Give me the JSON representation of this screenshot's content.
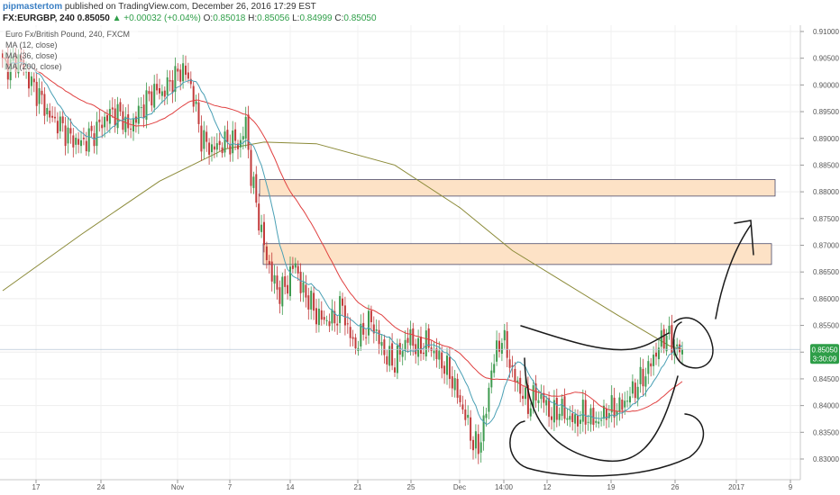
{
  "header": {
    "author": "pipmastertom",
    "published": "published on TradingView.com, December 26, 2016 17:29 EST",
    "symbol": "FX:EURGBP, 240",
    "last": "0.85050",
    "change_arrow": "▲",
    "change": "+0.00032 (+0.04%)",
    "o_label": "O:",
    "o_value": "0.85018",
    "h_label": "H:",
    "h_value": "0.85056",
    "l_label": "L:",
    "l_value": "0.84999",
    "c_label": "C:",
    "c_value": "0.85050"
  },
  "legend": {
    "title": "Euro Fx/British Pound, 240, FXCM",
    "ma1": "MA (12, close)",
    "ma2": "MA (36, close)",
    "ma3": "MA (200, close)"
  },
  "price_labels": {
    "current": "0.85050",
    "countdown": "3:30:09"
  },
  "colors": {
    "up": "#3e9b4f",
    "down": "#c23b3b",
    "ma12": "#4aa0b5",
    "ma36": "#e04040",
    "ma200": "#8b8a38",
    "zone_fill": "#fde2c6",
    "zone_stroke": "#4a4a6a",
    "price_tag": "#2e9e48"
  },
  "chart_data": {
    "type": "candlestick",
    "ylim": [
      0.826,
      0.912
    ],
    "y_ticks": [
      "0.91000",
      "0.90500",
      "0.90000",
      "0.89500",
      "0.89000",
      "0.88500",
      "0.88000",
      "0.87500",
      "0.87000",
      "0.86500",
      "0.86000",
      "0.85500",
      "0.85000",
      "0.84500",
      "0.84000",
      "0.83500",
      "0.83000"
    ],
    "x_ticks": [
      "17",
      "24",
      "Nov",
      "7",
      "14",
      "21",
      "25",
      "Dec",
      "14:00",
      "12",
      "19",
      "26",
      "2017",
      "9"
    ],
    "zones": [
      {
        "low": 0.8792,
        "high": 0.8823
      },
      {
        "low": 0.8664,
        "high": 0.8703
      }
    ],
    "close_points": [
      [
        0,
        0.904
      ],
      [
        3,
        0.9035
      ],
      [
        6,
        0.905
      ],
      [
        10,
        0.901
      ],
      [
        14,
        0.898
      ],
      [
        18,
        0.894
      ],
      [
        22,
        0.8925
      ],
      [
        26,
        0.89
      ],
      [
        30,
        0.889
      ],
      [
        34,
        0.8905
      ],
      [
        38,
        0.893
      ],
      [
        42,
        0.895
      ],
      [
        46,
        0.894
      ],
      [
        48,
        0.8915
      ],
      [
        51,
        0.894
      ],
      [
        55,
        0.897
      ],
      [
        58,
        0.899
      ],
      [
        61,
        0.8985
      ],
      [
        65,
        0.901
      ],
      [
        69,
        0.903
      ],
      [
        72,
        0.9
      ],
      [
        74,
        0.895
      ],
      [
        76,
        0.89
      ],
      [
        80,
        0.888
      ],
      [
        84,
        0.889
      ],
      [
        88,
        0.8895
      ],
      [
        91,
        0.889
      ],
      [
        93,
        0.893
      ],
      [
        95,
        0.883
      ],
      [
        97,
        0.878
      ],
      [
        99,
        0.872
      ],
      [
        101,
        0.868
      ],
      [
        103,
        0.864
      ],
      [
        106,
        0.861
      ],
      [
        109,
        0.863
      ],
      [
        112,
        0.867
      ],
      [
        114,
        0.862
      ],
      [
        117,
        0.86
      ],
      [
        120,
        0.857
      ],
      [
        123,
        0.856
      ],
      [
        127,
        0.856
      ],
      [
        130,
        0.859
      ],
      [
        132,
        0.854
      ],
      [
        135,
        0.851
      ],
      [
        138,
        0.854
      ],
      [
        141,
        0.856
      ],
      [
        144,
        0.852
      ],
      [
        147,
        0.849
      ],
      [
        150,
        0.848
      ],
      [
        153,
        0.851
      ],
      [
        156,
        0.853
      ],
      [
        159,
        0.85
      ],
      [
        162,
        0.852
      ],
      [
        165,
        0.85
      ],
      [
        168,
        0.848
      ],
      [
        171,
        0.846
      ],
      [
        174,
        0.842
      ],
      [
        177,
        0.838
      ],
      [
        180,
        0.833
      ],
      [
        182,
        0.832
      ],
      [
        185,
        0.839
      ],
      [
        187,
        0.847
      ],
      [
        189,
        0.85
      ],
      [
        191,
        0.853
      ],
      [
        193,
        0.85
      ],
      [
        195,
        0.846
      ],
      [
        198,
        0.843
      ],
      [
        201,
        0.84
      ],
      [
        204,
        0.842
      ],
      [
        207,
        0.841
      ],
      [
        210,
        0.838
      ],
      [
        213,
        0.8395
      ],
      [
        216,
        0.838
      ],
      [
        219,
        0.837
      ],
      [
        222,
        0.8385
      ],
      [
        225,
        0.8375
      ],
      [
        228,
        0.837
      ],
      [
        231,
        0.839
      ],
      [
        234,
        0.8395
      ],
      [
        237,
        0.84
      ],
      [
        240,
        0.842
      ],
      [
        243,
        0.844
      ],
      [
        246,
        0.846
      ],
      [
        249,
        0.849
      ],
      [
        252,
        0.852
      ],
      [
        254,
        0.8535
      ],
      [
        256,
        0.8515
      ],
      [
        258,
        0.8505
      ],
      [
        260,
        0.8505
      ]
    ],
    "series": [
      {
        "name": "MA (12, close)"
      },
      {
        "name": "MA (36, close)"
      },
      {
        "name": "MA (200, close)"
      }
    ],
    "grid": true
  }
}
